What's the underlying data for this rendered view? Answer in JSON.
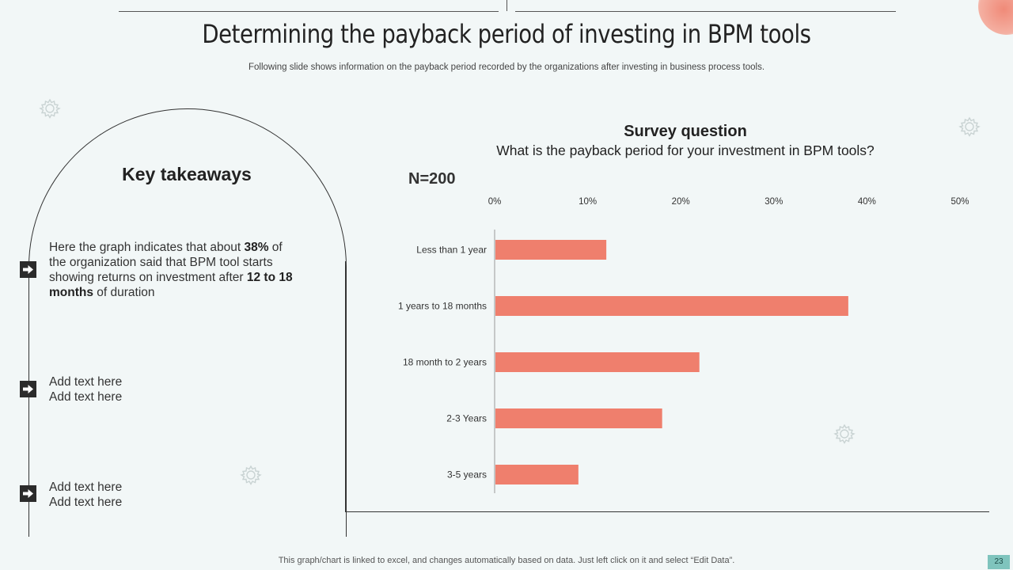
{
  "slide": {
    "title": "Determining the payback period of investing in BPM tools",
    "subtitle": "Following slide shows information on the payback period recorded by the organizations after investing in business process tools.",
    "footer_note": "This graph/chart is linked to excel, and changes automatically based on data. Just left click on it and select “Edit Data”.",
    "page_number": "23"
  },
  "takeaways": {
    "heading": "Key takeaways",
    "item1": {
      "part1": "Here the graph indicates that about ",
      "bold1": "38%",
      "part2": " of the organization said that BPM tool starts showing returns  on investment after ",
      "bold2": "12 to 18 months",
      "part3": " of duration"
    },
    "item2": {
      "line1": "Add text here",
      "line2": "Add text here"
    },
    "item3": {
      "line1": "Add text here",
      "line2": "Add text here"
    }
  },
  "survey": {
    "heading": "Survey question",
    "question": "What is the payback period for your investment in BPM tools?",
    "sample_size": "N=200"
  },
  "colors": {
    "bar": "#ef7f6d",
    "background": "#f2f7f7",
    "accent": "#7fc4bd"
  },
  "icons": [
    "arrow-right-icon",
    "gear-icon"
  ],
  "chart_data": {
    "type": "bar",
    "orientation": "horizontal",
    "categories": [
      "Less than 1 year",
      "1 years to 18 months",
      "18 month to 2 years",
      "2-3 Years",
      "3-5 years"
    ],
    "values": [
      12,
      38,
      22,
      18,
      9
    ],
    "xlim": [
      0,
      50
    ],
    "x_ticks": [
      0,
      10,
      20,
      30,
      40,
      50
    ],
    "x_tick_labels": [
      "0%",
      "10%",
      "20%",
      "30%",
      "40%",
      "50%"
    ],
    "x_axis_position": "top",
    "grid": false,
    "legend": "none"
  }
}
